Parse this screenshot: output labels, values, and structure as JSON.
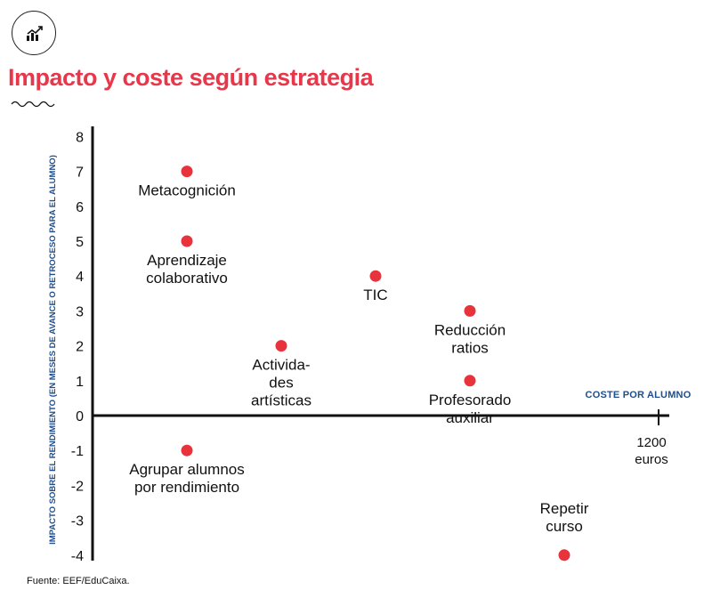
{
  "title": "Impacto y coste según estrategia",
  "source": "Fuente: EEF/EduCaixa.",
  "logo_icon": "bar-chart-trend-icon",
  "colors": {
    "accent": "#e8374a",
    "point": "#e8323c",
    "axis_label": "#1f4e8c",
    "text": "#111111"
  },
  "chart_data": {
    "type": "scatter",
    "title": "Impacto y coste según estrategia",
    "ylabel": "Impacto sobre el rendimiento (en meses de avance o retroceso para el alumno)",
    "xlabel": "Coste por alumno",
    "ylim": [
      -4,
      8
    ],
    "xlim": [
      0,
      1250
    ],
    "yticks": [
      "8",
      "7",
      "6",
      "5",
      "4",
      "3",
      "2",
      "1",
      "0",
      "-1",
      "-2",
      "-3",
      "-4"
    ],
    "xtick": {
      "value": 1200,
      "label_lines": [
        "1200",
        "euros"
      ]
    },
    "grid": false,
    "points": [
      {
        "name": "Metacognición",
        "label_lines": [
          "Metacognición"
        ],
        "x": 200,
        "y": 7
      },
      {
        "name": "Aprendizaje colaborativo",
        "label_lines": [
          "Aprendizaje",
          "colaborativo"
        ],
        "x": 200,
        "y": 5
      },
      {
        "name": "Actividades artísticas",
        "label_lines": [
          "Activida-",
          "des",
          "artísticas"
        ],
        "x": 400,
        "y": 2
      },
      {
        "name": "TIC",
        "label_lines": [
          "TIC"
        ],
        "x": 600,
        "y": 4
      },
      {
        "name": "Reducción ratios",
        "label_lines": [
          "Reducción",
          "ratios"
        ],
        "x": 800,
        "y": 3
      },
      {
        "name": "Profesorado auxiliar",
        "label_lines": [
          "Profesorado",
          "auxiliar"
        ],
        "x": 800,
        "y": 1
      },
      {
        "name": "Agrupar alumnos por rendimiento",
        "label_lines": [
          "Agrupar alumnos",
          "por rendimiento"
        ],
        "x": 200,
        "y": -1
      },
      {
        "name": "Repetir curso",
        "label_lines": [
          "Repetir",
          "curso"
        ],
        "x": 1000,
        "y": -4
      }
    ]
  }
}
